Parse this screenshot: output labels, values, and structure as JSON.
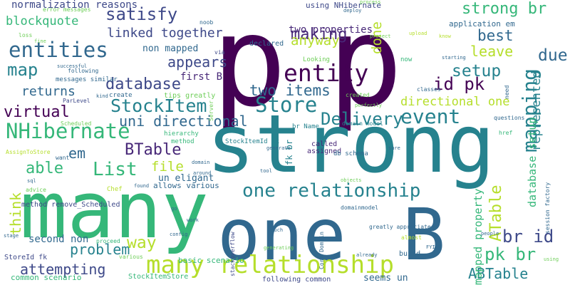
{
  "palette": {
    "dark_purple": "#440154",
    "indigo": "#482878",
    "blue": "#3e4989",
    "slate_blue": "#31688e",
    "teal_blue": "#26828e",
    "teal": "#1f9e89",
    "green_teal": "#35b779",
    "green": "#6ece58",
    "lime": "#b5de2b",
    "yellow": "#fde725"
  },
  "words": [
    {
      "text": "p",
      "color": "#440154"
    },
    {
      "text": "p",
      "color": "#440154"
    },
    {
      "text": "strong",
      "color": "#26828e"
    },
    {
      "text": "many",
      "color": "#35b779"
    },
    {
      "text": "one",
      "color": "#31688e"
    },
    {
      "text": "B",
      "color": "#31688e"
    },
    {
      "text": "many relationship",
      "color": "#b5de2b"
    },
    {
      "text": "one relationship",
      "color": "#26828e"
    },
    {
      "text": "entity",
      "color": "#440154"
    },
    {
      "text": "entities",
      "color": "#31688e"
    },
    {
      "text": "NHibernate",
      "color": "#35b779"
    },
    {
      "text": "strong br",
      "color": "#35b779"
    },
    {
      "text": "satisfy",
      "color": "#3e4989"
    },
    {
      "text": "map",
      "color": "#26828e"
    },
    {
      "text": "mapping",
      "color": "#26828e"
    },
    {
      "text": "Store",
      "color": "#26828e"
    },
    {
      "text": "StockItem",
      "color": "#26828e"
    },
    {
      "text": "database",
      "color": "#3e4989"
    },
    {
      "text": "virtual",
      "color": "#440154"
    },
    {
      "text": "List",
      "color": "#35b779"
    },
    {
      "text": "event",
      "color": "#26828e"
    },
    {
      "text": "Delivery",
      "color": "#26828e"
    },
    {
      "text": "problem",
      "color": "#26828e"
    },
    {
      "text": "way",
      "color": "#b5de2b"
    },
    {
      "text": "attempting",
      "color": "#3e4989"
    },
    {
      "text": "br id",
      "color": "#3e4989"
    },
    {
      "text": "pk br",
      "color": "#35b779"
    },
    {
      "text": "ABTable",
      "color": "#26828e"
    },
    {
      "text": "ATable",
      "color": "#b5de2b"
    },
    {
      "text": "BTable",
      "color": "#482878"
    },
    {
      "text": "file",
      "color": "#b5de2b"
    },
    {
      "text": "think",
      "color": "#b5de2b"
    },
    {
      "text": "able",
      "color": "#35b779"
    },
    {
      "text": "em",
      "color": "#31688e"
    },
    {
      "text": "uni directional",
      "color": "#31688e"
    },
    {
      "text": "directional one",
      "color": "#b5de2b"
    },
    {
      "text": "two items",
      "color": "#31688e"
    },
    {
      "text": "returns",
      "color": "#31688e"
    },
    {
      "text": "id pk",
      "color": "#440154"
    },
    {
      "text": "setup",
      "color": "#26828e"
    },
    {
      "text": "leave",
      "color": "#b5de2b"
    },
    {
      "text": "best",
      "color": "#31688e"
    },
    {
      "text": "due",
      "color": "#31688e"
    },
    {
      "text": "represented",
      "color": "#26828e"
    },
    {
      "text": "database setup",
      "color": "#35b779"
    },
    {
      "text": "mapped property",
      "color": "#35b779"
    },
    {
      "text": "blockquote",
      "color": "#35b779"
    },
    {
      "text": "making",
      "color": "#482878"
    },
    {
      "text": "done",
      "color": "#b5de2b"
    },
    {
      "text": "anyway",
      "color": "#b5de2b"
    },
    {
      "text": "linked together",
      "color": "#3e4989"
    },
    {
      "text": "appears",
      "color": "#3e4989"
    },
    {
      "text": "two properties",
      "color": "#482878"
    },
    {
      "text": "normalization reasons",
      "color": "#3e4989"
    },
    {
      "text": "non mapped",
      "color": "#31688e"
    },
    {
      "text": "first B",
      "color": "#482878"
    },
    {
      "text": "second non",
      "color": "#31688e"
    },
    {
      "text": "un eligant",
      "color": "#31688e"
    },
    {
      "text": "using NHibernate",
      "color": "#3e4989"
    },
    {
      "text": "application em",
      "color": "#31688e"
    },
    {
      "text": "error messages",
      "color": "#6ece58"
    },
    {
      "text": "br Name",
      "color": "#26828e"
    },
    {
      "text": "domain model",
      "color": "#26828e"
    },
    {
      "text": "StockItemId fk",
      "color": "#26828e"
    },
    {
      "text": "fk br",
      "color": "#26828e"
    },
    {
      "text": "called",
      "color": "#482878"
    },
    {
      "text": "assigned",
      "color": "#482878"
    },
    {
      "text": "db schema",
      "color": "#31688e"
    },
    {
      "text": "declared",
      "color": "#31688e"
    },
    {
      "text": "Looking",
      "color": "#6ece58"
    },
    {
      "text": "created",
      "color": "#6ece58"
    },
    {
      "text": "hierarchy",
      "color": "#35b779"
    },
    {
      "text": "method",
      "color": "#35b779"
    },
    {
      "text": "allows various",
      "color": "#31688e"
    },
    {
      "text": "method remove_Scheduled",
      "color": "#3e4989"
    },
    {
      "text": "seems un",
      "color": "#31688e"
    },
    {
      "text": "following common",
      "color": "#3e4989"
    },
    {
      "text": "common scenario",
      "color": "#35b779"
    },
    {
      "text": "StockItemStore",
      "color": "#35b779"
    },
    {
      "text": "basic scenario",
      "color": "#35b779"
    },
    {
      "text": "StoreId fk",
      "color": "#3e4989"
    },
    {
      "text": "various",
      "color": "#6ece58"
    },
    {
      "text": "proceed",
      "color": "#35b779"
    },
    {
      "text": "advice",
      "color": "#6ece58"
    },
    {
      "text": "tips greatly",
      "color": "#6ece58"
    },
    {
      "text": "messages similar",
      "color": "#31688e"
    },
    {
      "text": "ParLevel",
      "color": "#3e4989"
    },
    {
      "text": "following",
      "color": "#31688e"
    },
    {
      "text": "Scheduled",
      "color": "#6ece58"
    },
    {
      "text": "AssignToStore",
      "color": "#b5de2b"
    },
    {
      "text": "want",
      "color": "#31688e"
    },
    {
      "text": "Chef",
      "color": "#b5de2b"
    },
    {
      "text": "create",
      "color": "#31688e"
    },
    {
      "text": "session factory",
      "color": "#31688e"
    },
    {
      "text": "Core Domain",
      "color": "#31688e"
    },
    {
      "text": "build",
      "color": "#31688e"
    },
    {
      "text": "almost",
      "color": "#b5de2b"
    },
    {
      "text": "questions",
      "color": "#31688e"
    },
    {
      "text": "greatly appreciated",
      "color": "#31688e"
    },
    {
      "text": "domainmodel",
      "color": "#31688e"
    },
    {
      "text": "stackoverflow",
      "color": "#3e4989"
    },
    {
      "text": "classes",
      "color": "#31688e"
    },
    {
      "text": "loss",
      "color": "#6ece58"
    },
    {
      "text": "fine",
      "color": "#6ece58"
    },
    {
      "text": "noob",
      "color": "#31688e"
    },
    {
      "text": "via",
      "color": "#3e4989"
    },
    {
      "text": "now",
      "color": "#35b779"
    },
    {
      "text": "successful",
      "color": "#31688e"
    },
    {
      "text": "kind",
      "color": "#31688e"
    },
    {
      "text": "Server",
      "color": "#6ece58"
    },
    {
      "text": "need",
      "color": "#31688e"
    },
    {
      "text": "href",
      "color": "#35b779"
    },
    {
      "text": "deploy",
      "color": "#31688e"
    },
    {
      "text": "process",
      "color": "#6ece58"
    },
    {
      "text": "project",
      "color": "#6ece58"
    },
    {
      "text": "upload",
      "color": "#b5de2b"
    },
    {
      "text": "know",
      "color": "#b5de2b"
    },
    {
      "text": "starting",
      "color": "#31688e"
    },
    {
      "text": "perfectly",
      "color": "#6ece58"
    },
    {
      "text": "generate",
      "color": "#31688e"
    },
    {
      "text": "tool",
      "color": "#31688e"
    },
    {
      "text": "sure",
      "color": "#31688e"
    },
    {
      "text": "objects",
      "color": "#6ece58"
    },
    {
      "text": "touch",
      "color": "#31688e"
    },
    {
      "text": "FYI",
      "color": "#31688e"
    },
    {
      "text": "already",
      "color": "#31688e"
    },
    {
      "text": "people",
      "color": "#31688e"
    },
    {
      "text": "using",
      "color": "#6ece58"
    },
    {
      "text": "around",
      "color": "#31688e"
    },
    {
      "text": "domain",
      "color": "#31688e"
    },
    {
      "text": "found",
      "color": "#31688e"
    },
    {
      "text": "work",
      "color": "#31688e"
    },
    {
      "text": "config",
      "color": "#31688e"
    },
    {
      "text": "stage",
      "color": "#31688e"
    },
    {
      "text": "generating",
      "color": "#6ece58"
    },
    {
      "text": "go",
      "color": "#31688e"
    },
    {
      "text": "sql",
      "color": "#31688e"
    }
  ]
}
